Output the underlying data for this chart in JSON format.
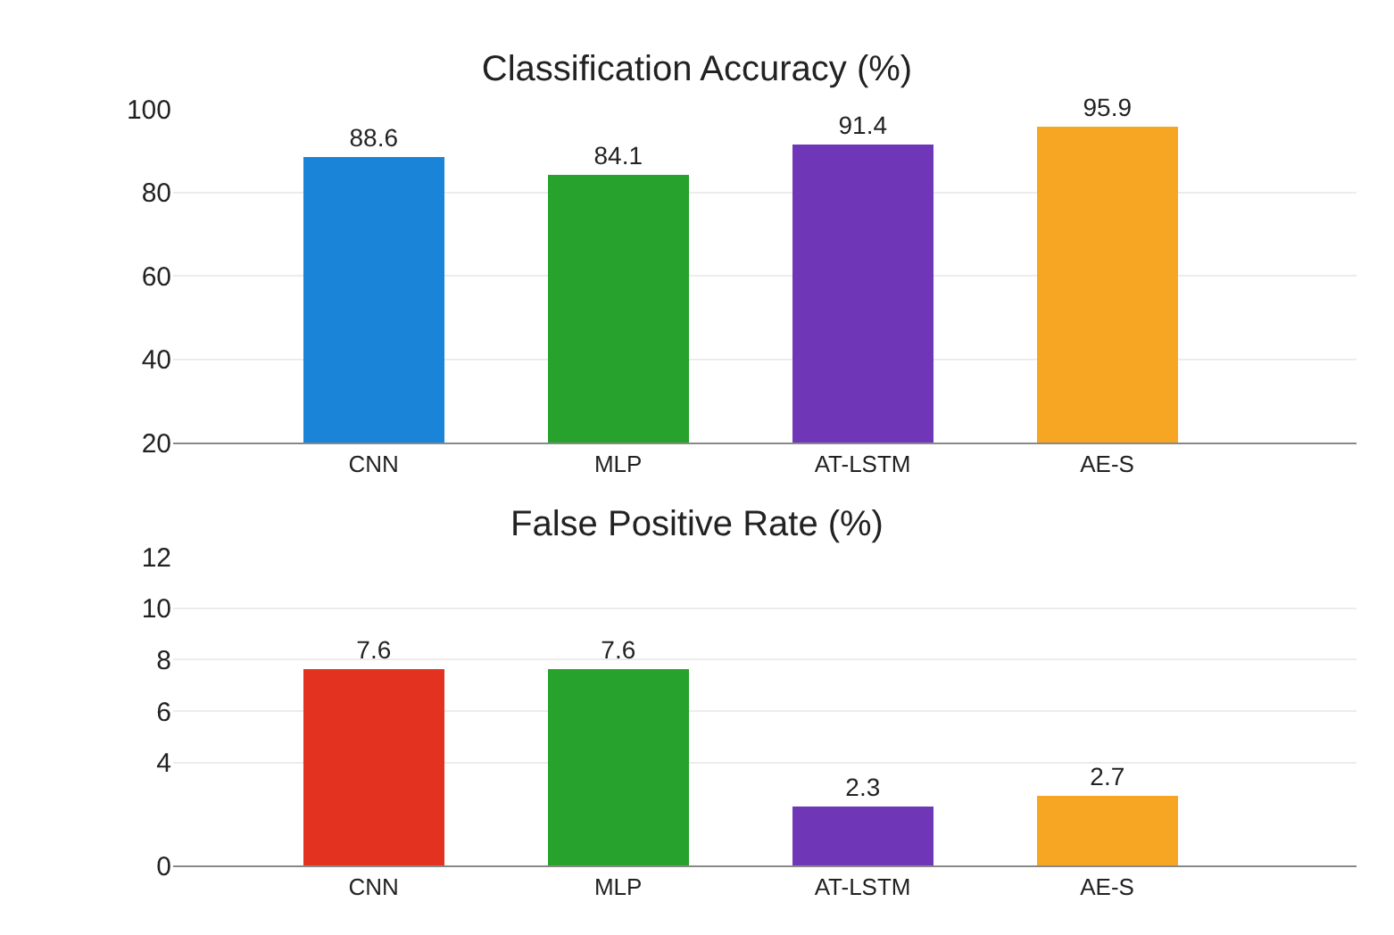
{
  "chart_data": [
    {
      "type": "bar",
      "title": "Classification Accuracy (%)",
      "categories": [
        "CNN",
        "MLP",
        "AT-LSTM",
        "AE-S"
      ],
      "values": [
        88.6,
        84.1,
        91.4,
        95.9
      ],
      "data_labels": true,
      "colors": [
        "#1a84d8",
        "#27a22c",
        "#6f37b8",
        "#f6a623"
      ],
      "ylim": [
        20,
        100
      ],
      "yticks": [
        20,
        40,
        60,
        80,
        100
      ],
      "grid": "y"
    },
    {
      "type": "bar",
      "title": "False Positive Rate (%)",
      "categories": [
        "CNN",
        "MLP",
        "AT-LSTM",
        "AE-S"
      ],
      "values": [
        7.6,
        7.6,
        2.3,
        2.7
      ],
      "data_labels": true,
      "colors": [
        "#e3321f",
        "#27a22c",
        "#6f37b8",
        "#f6a623"
      ],
      "ylim": [
        0,
        12
      ],
      "yticks": [
        0,
        4,
        6,
        8,
        10,
        12
      ],
      "grid": "y"
    }
  ]
}
